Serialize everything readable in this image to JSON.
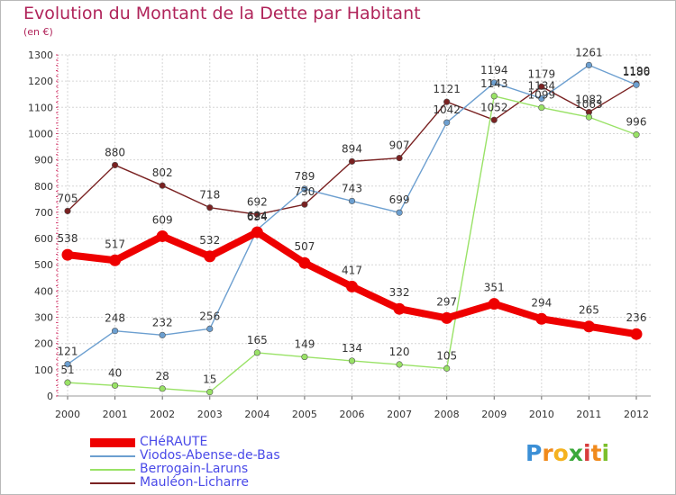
{
  "chart_data": {
    "type": "line",
    "title": "Evolution du Montant de la Dette par Habitant",
    "unit": "(en €)",
    "xlabel": "",
    "ylabel": "",
    "x": [
      "2000",
      "2001",
      "2002",
      "2003",
      "2004",
      "2005",
      "2006",
      "2007",
      "2008",
      "2009",
      "2010",
      "2011",
      "2012"
    ],
    "ylim": [
      0,
      1300
    ],
    "yticks": [
      0,
      100,
      200,
      300,
      400,
      500,
      600,
      700,
      800,
      900,
      1000,
      1100,
      1200,
      1300
    ],
    "grid": true,
    "legend_position": "bottom-left",
    "series": [
      {
        "name": "CHéRAUTE",
        "color": "#ee0000",
        "emphasis": true,
        "values": [
          538,
          517,
          609,
          532,
          624,
          507,
          417,
          332,
          297,
          351,
          294,
          265,
          236
        ]
      },
      {
        "name": "Viodos-Abense-de-Bas",
        "color": "#6c9fd0",
        "emphasis": false,
        "values": [
          121,
          248,
          232,
          256,
          634,
          789,
          743,
          699,
          1042,
          1194,
          1134,
          1261,
          1186
        ]
      },
      {
        "name": "Berrogain-Laruns",
        "color": "#99e266",
        "emphasis": false,
        "values": [
          51,
          40,
          28,
          15,
          165,
          149,
          134,
          120,
          105,
          1143,
          1099,
          1063,
          996
        ]
      },
      {
        "name": "Mauléon-Licharre",
        "color": "#7a2222",
        "emphasis": false,
        "values": [
          705,
          880,
          802,
          718,
          692,
          730,
          894,
          907,
          1121,
          1052,
          1179,
          1082,
          1190
        ]
      }
    ],
    "point_labels": [
      [
        "538",
        "517",
        "609",
        "532",
        "624",
        "507",
        "417",
        "332",
        "297",
        "351",
        "294",
        "265",
        "236"
      ],
      [
        "121",
        "248",
        "232",
        "256",
        "634",
        "789",
        "743",
        "699",
        "1042",
        "1194",
        "1134",
        "1261",
        "1186"
      ],
      [
        "51",
        "40",
        "28",
        "15",
        "165",
        "149",
        "134",
        "120",
        "105",
        "1143",
        "1099",
        "1063",
        "996"
      ],
      [
        "705",
        "880",
        "802",
        "718",
        "692",
        "730",
        "894",
        "907",
        "1121",
        "1052",
        "1179",
        "1082",
        "1190"
      ]
    ]
  },
  "logo": {
    "letters": [
      "P",
      "r",
      "o",
      "x",
      "i",
      "t",
      "i"
    ],
    "colors": [
      "#3b8fd6",
      "#f08a1c",
      "#f5b21f",
      "#3aa83a",
      "#d83c3c",
      "#f08a1c",
      "#7bbf2a"
    ]
  }
}
